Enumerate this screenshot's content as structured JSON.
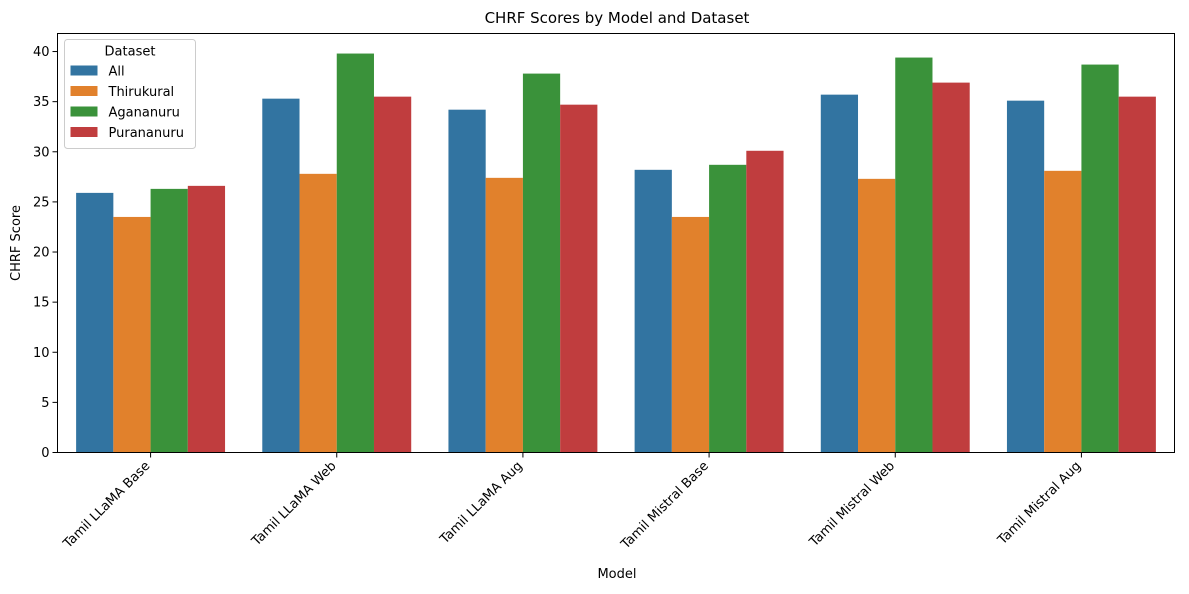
{
  "chart_data": {
    "type": "bar",
    "title": "CHRF Scores by Model and Dataset",
    "xlabel": "Model",
    "ylabel": "CHRF Score",
    "ylim": [
      0,
      41.8
    ],
    "yticks": [
      0,
      5,
      10,
      15,
      20,
      25,
      30,
      35,
      40
    ],
    "grid": false,
    "categories": [
      "Tamil LLaMA Base",
      "Tamil LLaMA Web",
      "Tamil LLaMA Aug",
      "Tamil Mistral Base",
      "Tamil Mistral Web",
      "Tamil Mistral Aug"
    ],
    "legend": {
      "title": "Dataset",
      "placement": "top-left"
    },
    "series": [
      {
        "name": "All",
        "color": "#3274a1",
        "values": [
          25.9,
          35.3,
          34.2,
          28.2,
          35.7,
          35.1
        ]
      },
      {
        "name": "Thirukural",
        "color": "#e1812c",
        "values": [
          23.5,
          27.8,
          27.4,
          23.5,
          27.3,
          28.1
        ]
      },
      {
        "name": "Agananuru",
        "color": "#3a923a",
        "values": [
          26.3,
          39.8,
          37.8,
          28.7,
          39.4,
          38.7
        ]
      },
      {
        "name": "Purananuru",
        "color": "#c03d3e",
        "values": [
          26.6,
          35.5,
          34.7,
          30.1,
          36.9,
          35.5
        ]
      }
    ]
  }
}
